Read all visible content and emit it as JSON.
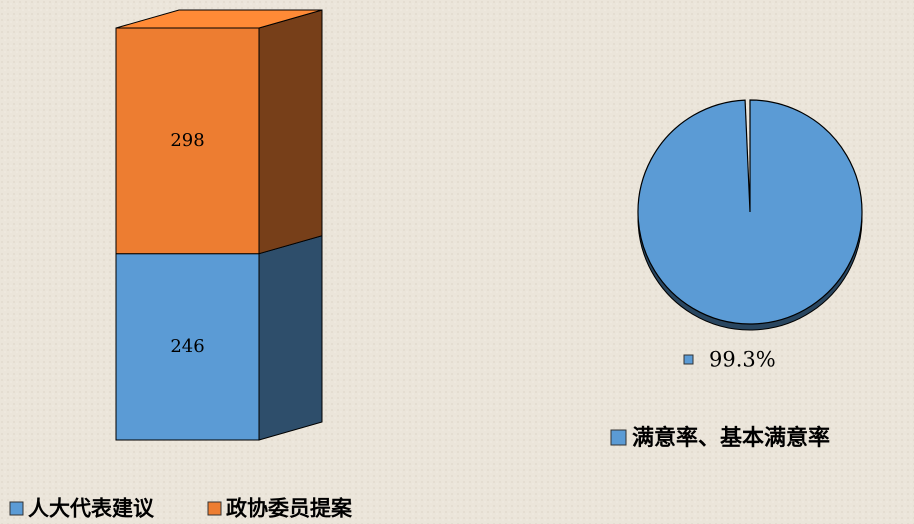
{
  "chart_data": [
    {
      "type": "bar3d-stacked",
      "categories": [
        null
      ],
      "series": [
        {
          "name": "人大代表建议",
          "color": "#5b9bd5",
          "values": [
            246
          ]
        },
        {
          "name": "政协委员提案",
          "color": "#ed7d31",
          "values": [
            298
          ]
        }
      ],
      "ylim": [
        0,
        544
      ]
    },
    {
      "type": "pie",
      "series": [
        {
          "name": "满意率、基本满意率",
          "color": "#5b9bd5",
          "values": [
            99.3
          ],
          "value_labels": [
            "99.3%"
          ]
        }
      ]
    }
  ]
}
